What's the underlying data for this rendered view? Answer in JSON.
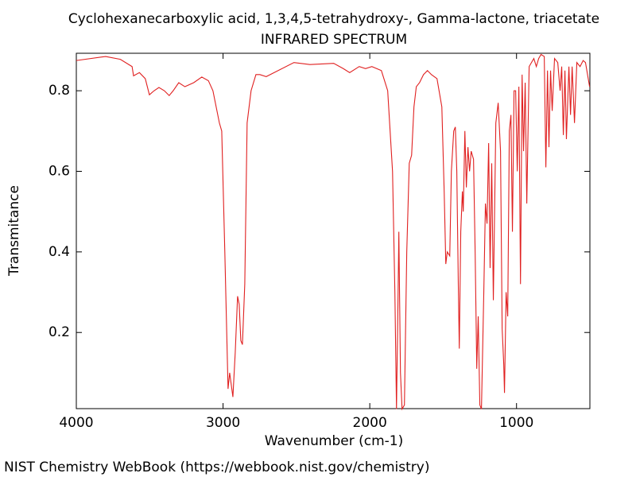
{
  "chart_data": {
    "type": "line",
    "title": "Cyclohexanecarboxylic acid, 1,3,4,5-tetrahydroxy-, Gamma-lactone, triacetate",
    "subtitle": "INFRARED SPECTRUM",
    "x_label": "Wavenumber (cm-1)",
    "y_label": "Transmitance",
    "source": "NIST Chemistry WebBook (https://webbook.nist.gov/chemistry)",
    "xlim": [
      4000,
      500
    ],
    "ylim": [
      0.011,
      0.893
    ],
    "xticks": [
      4000,
      3000,
      2000,
      1000
    ],
    "yticks": [
      0.2,
      0.4,
      0.6,
      0.8
    ],
    "grid": false,
    "series": [
      {
        "name": "spectrum",
        "color": "#e02020",
        "x": [
          4000,
          3800,
          3700,
          3620,
          3610,
          3570,
          3530,
          3502,
          3470,
          3437,
          3400,
          3367,
          3340,
          3302,
          3260,
          3200,
          3145,
          3100,
          3069,
          3025,
          3009,
          2988,
          2966,
          2955,
          2944,
          2933,
          2917,
          2901,
          2890,
          2879,
          2868,
          2852,
          2836,
          2809,
          2776,
          2749,
          2706,
          2517,
          2408,
          2246,
          2181,
          2137,
          2072,
          2029,
          1986,
          1921,
          1878,
          1845,
          1829,
          1818,
          1807,
          1802,
          1791,
          1780,
          1764,
          1748,
          1731,
          1715,
          1699,
          1683,
          1661,
          1634,
          1607,
          1580,
          1542,
          1509,
          1493,
          1482,
          1472,
          1455,
          1444,
          1428,
          1417,
          1407,
          1396,
          1390,
          1380,
          1369,
          1363,
          1352,
          1342,
          1331,
          1320,
          1309,
          1293,
          1282,
          1271,
          1261,
          1250,
          1239,
          1223,
          1212,
          1201,
          1190,
          1180,
          1169,
          1158,
          1141,
          1125,
          1109,
          1098,
          1087,
          1082,
          1071,
          1060,
          1049,
          1038,
          1028,
          1017,
          1006,
          995,
          984,
          973,
          962,
          952,
          941,
          930,
          914,
          898,
          882,
          865,
          849,
          833,
          811,
          800,
          789,
          779,
          768,
          757,
          741,
          719,
          703,
          692,
          681,
          670,
          660,
          643,
          632,
          621,
          605,
          589,
          567,
          546,
          530,
          502
        ],
        "values": [
          0.875,
          0.885,
          0.878,
          0.86,
          0.837,
          0.845,
          0.83,
          0.79,
          0.8,
          0.808,
          0.8,
          0.788,
          0.8,
          0.82,
          0.81,
          0.82,
          0.834,
          0.825,
          0.8,
          0.72,
          0.7,
          0.4,
          0.06,
          0.1,
          0.07,
          0.04,
          0.15,
          0.29,
          0.27,
          0.18,
          0.17,
          0.32,
          0.72,
          0.8,
          0.84,
          0.84,
          0.835,
          0.87,
          0.865,
          0.868,
          0.855,
          0.845,
          0.86,
          0.855,
          0.86,
          0.85,
          0.8,
          0.6,
          0.3,
          0.01,
          0.3,
          0.45,
          0.1,
          0.01,
          0.02,
          0.4,
          0.62,
          0.64,
          0.76,
          0.81,
          0.82,
          0.84,
          0.85,
          0.84,
          0.83,
          0.76,
          0.55,
          0.37,
          0.4,
          0.39,
          0.6,
          0.7,
          0.71,
          0.6,
          0.3,
          0.16,
          0.45,
          0.55,
          0.5,
          0.7,
          0.56,
          0.66,
          0.6,
          0.65,
          0.63,
          0.4,
          0.11,
          0.24,
          0.02,
          0.01,
          0.3,
          0.52,
          0.47,
          0.67,
          0.36,
          0.62,
          0.28,
          0.72,
          0.77,
          0.65,
          0.21,
          0.12,
          0.05,
          0.3,
          0.24,
          0.7,
          0.74,
          0.45,
          0.8,
          0.8,
          0.6,
          0.81,
          0.32,
          0.84,
          0.65,
          0.82,
          0.52,
          0.86,
          0.87,
          0.88,
          0.86,
          0.88,
          0.89,
          0.885,
          0.61,
          0.85,
          0.66,
          0.85,
          0.75,
          0.88,
          0.87,
          0.8,
          0.86,
          0.69,
          0.85,
          0.68,
          0.86,
          0.74,
          0.86,
          0.72,
          0.87,
          0.86,
          0.875,
          0.87,
          0.81
        ]
      }
    ]
  }
}
